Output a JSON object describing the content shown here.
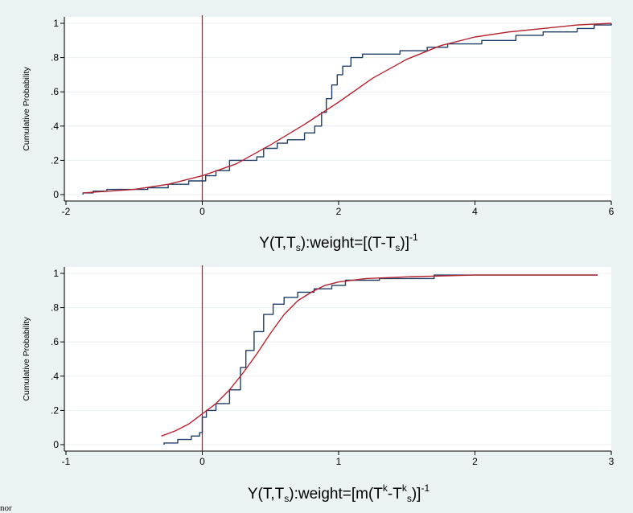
{
  "chart_data": [
    {
      "type": "line",
      "xlabel_main": "Y(T,T",
      "xlabel_sub": "s",
      "xlabel_tail": "):weight=[(T-T",
      "xlabel_sub2": "s",
      "xlabel_close": ")]",
      "xlabel_sup": "-1",
      "ylabel": "Cumulative Probability",
      "xlim": [
        -2,
        6
      ],
      "ylim": [
        0,
        1
      ],
      "xticks": [
        -2,
        0,
        2,
        4,
        6
      ],
      "xtick_labels": [
        "-2",
        "0",
        "2",
        "4",
        "6"
      ],
      "yticks": [
        0,
        0.2,
        0.4,
        0.6,
        0.8,
        1
      ],
      "ytick_labels": [
        "0",
        ".2",
        ".4",
        ".6",
        ".8",
        "1"
      ],
      "vline_x": 0,
      "grid": true,
      "series": [
        {
          "kind": "empirical_step",
          "color": "#1f3f66",
          "points": [
            [
              -1.75,
              0.0
            ],
            [
              -1.75,
              0.01
            ],
            [
              -1.6,
              0.01
            ],
            [
              -1.6,
              0.02
            ],
            [
              -1.4,
              0.02
            ],
            [
              -1.4,
              0.03
            ],
            [
              -0.8,
              0.03
            ],
            [
              -0.8,
              0.04
            ],
            [
              -0.5,
              0.04
            ],
            [
              -0.5,
              0.06
            ],
            [
              -0.2,
              0.06
            ],
            [
              -0.2,
              0.08
            ],
            [
              0.05,
              0.08
            ],
            [
              0.05,
              0.11
            ],
            [
              0.2,
              0.11
            ],
            [
              0.2,
              0.14
            ],
            [
              0.4,
              0.14
            ],
            [
              0.4,
              0.2
            ],
            [
              0.8,
              0.2
            ],
            [
              0.8,
              0.22
            ],
            [
              0.9,
              0.22
            ],
            [
              0.9,
              0.27
            ],
            [
              1.1,
              0.27
            ],
            [
              1.1,
              0.3
            ],
            [
              1.25,
              0.3
            ],
            [
              1.25,
              0.32
            ],
            [
              1.5,
              0.32
            ],
            [
              1.5,
              0.36
            ],
            [
              1.65,
              0.36
            ],
            [
              1.65,
              0.4
            ],
            [
              1.75,
              0.4
            ],
            [
              1.75,
              0.48
            ],
            [
              1.82,
              0.48
            ],
            [
              1.82,
              0.56
            ],
            [
              1.9,
              0.56
            ],
            [
              1.9,
              0.64
            ],
            [
              1.98,
              0.64
            ],
            [
              1.98,
              0.7
            ],
            [
              2.06,
              0.7
            ],
            [
              2.06,
              0.75
            ],
            [
              2.18,
              0.75
            ],
            [
              2.18,
              0.8
            ],
            [
              2.35,
              0.8
            ],
            [
              2.35,
              0.82
            ],
            [
              2.9,
              0.82
            ],
            [
              2.9,
              0.84
            ],
            [
              3.3,
              0.84
            ],
            [
              3.3,
              0.86
            ],
            [
              3.6,
              0.86
            ],
            [
              3.6,
              0.88
            ],
            [
              4.1,
              0.88
            ],
            [
              4.1,
              0.9
            ],
            [
              4.6,
              0.9
            ],
            [
              4.6,
              0.93
            ],
            [
              5.0,
              0.93
            ],
            [
              5.0,
              0.95
            ],
            [
              5.5,
              0.95
            ],
            [
              5.5,
              0.97
            ],
            [
              5.75,
              0.97
            ],
            [
              5.75,
              0.99
            ],
            [
              6.0,
              0.99
            ],
            [
              6.0,
              1.0
            ]
          ]
        },
        {
          "kind": "fitted_cdf",
          "color": "#b5222e",
          "points": [
            [
              -1.75,
              0.01
            ],
            [
              -1.0,
              0.03
            ],
            [
              -0.5,
              0.06
            ],
            [
              0.0,
              0.11
            ],
            [
              0.5,
              0.18
            ],
            [
              1.0,
              0.29
            ],
            [
              1.5,
              0.41
            ],
            [
              2.0,
              0.54
            ],
            [
              2.5,
              0.68
            ],
            [
              3.0,
              0.79
            ],
            [
              3.5,
              0.87
            ],
            [
              4.0,
              0.92
            ],
            [
              4.5,
              0.95
            ],
            [
              5.0,
              0.97
            ],
            [
              5.5,
              0.99
            ],
            [
              6.0,
              1.0
            ]
          ]
        }
      ]
    },
    {
      "type": "line",
      "xlabel_main": "Y(T,T",
      "xlabel_sub": "s",
      "xlabel_tail": "):weight=[m(T",
      "xlabel_sup_k": "k",
      "xlabel_mid": "-T",
      "xlabel_sup_k2": "k",
      "xlabel_sub2": "s",
      "xlabel_close": ")]",
      "xlabel_sup": "-1",
      "ylabel": "Cumulative Probability",
      "xlim": [
        -1,
        3
      ],
      "ylim": [
        0,
        1
      ],
      "xticks": [
        -1,
        0,
        1,
        2,
        3
      ],
      "xtick_labels": [
        "-1",
        "0",
        "1",
        "2",
        "3"
      ],
      "yticks": [
        0,
        0.2,
        0.4,
        0.6,
        0.8,
        1
      ],
      "ytick_labels": [
        "0",
        ".2",
        ".4",
        ".6",
        ".8",
        "1"
      ],
      "vline_x": 0,
      "grid": true,
      "series": [
        {
          "kind": "empirical_step",
          "color": "#1f3f66",
          "points": [
            [
              -0.28,
              0.0
            ],
            [
              -0.28,
              0.01
            ],
            [
              -0.18,
              0.01
            ],
            [
              -0.18,
              0.03
            ],
            [
              -0.08,
              0.03
            ],
            [
              -0.08,
              0.05
            ],
            [
              -0.02,
              0.05
            ],
            [
              -0.02,
              0.07
            ],
            [
              0.0,
              0.07
            ],
            [
              0.0,
              0.16
            ],
            [
              0.03,
              0.16
            ],
            [
              0.03,
              0.2
            ],
            [
              0.1,
              0.2
            ],
            [
              0.1,
              0.24
            ],
            [
              0.2,
              0.24
            ],
            [
              0.2,
              0.32
            ],
            [
              0.28,
              0.32
            ],
            [
              0.28,
              0.45
            ],
            [
              0.32,
              0.45
            ],
            [
              0.32,
              0.55
            ],
            [
              0.38,
              0.55
            ],
            [
              0.38,
              0.66
            ],
            [
              0.45,
              0.66
            ],
            [
              0.45,
              0.76
            ],
            [
              0.52,
              0.76
            ],
            [
              0.52,
              0.82
            ],
            [
              0.6,
              0.82
            ],
            [
              0.6,
              0.86
            ],
            [
              0.7,
              0.86
            ],
            [
              0.7,
              0.89
            ],
            [
              0.82,
              0.89
            ],
            [
              0.82,
              0.91
            ],
            [
              0.95,
              0.91
            ],
            [
              0.95,
              0.93
            ],
            [
              1.05,
              0.93
            ],
            [
              1.05,
              0.96
            ],
            [
              1.3,
              0.96
            ],
            [
              1.3,
              0.97
            ],
            [
              1.7,
              0.97
            ],
            [
              1.7,
              0.99
            ],
            [
              2.9,
              0.99
            ]
          ]
        },
        {
          "kind": "fitted_cdf",
          "color": "#b5222e",
          "points": [
            [
              -0.3,
              0.05
            ],
            [
              -0.2,
              0.08
            ],
            [
              -0.1,
              0.12
            ],
            [
              0.0,
              0.18
            ],
            [
              0.1,
              0.24
            ],
            [
              0.2,
              0.32
            ],
            [
              0.3,
              0.42
            ],
            [
              0.4,
              0.53
            ],
            [
              0.5,
              0.65
            ],
            [
              0.6,
              0.76
            ],
            [
              0.7,
              0.84
            ],
            [
              0.8,
              0.89
            ],
            [
              0.9,
              0.93
            ],
            [
              1.0,
              0.95
            ],
            [
              1.2,
              0.97
            ],
            [
              1.5,
              0.98
            ],
            [
              2.0,
              0.99
            ],
            [
              2.9,
              0.99
            ]
          ]
        }
      ]
    }
  ],
  "footer_fragment": "nor"
}
